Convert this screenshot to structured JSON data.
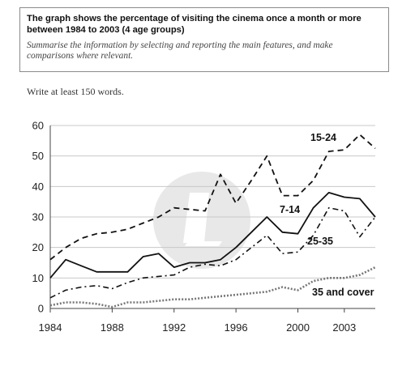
{
  "task": {
    "title": "The graph shows the percentage of visiting the cinema once a month or more between 1984 to 2003 (4 age groups)",
    "instructions": "Summarise the information by selecting and reporting the main features, and make comparisons where relevant."
  },
  "word_count_note": "Write at least 150 words.",
  "chart_data": {
    "type": "line",
    "title": "",
    "xlabel": "",
    "ylabel": "",
    "xlim": [
      1984,
      2005
    ],
    "ylim": [
      0,
      60
    ],
    "x_ticks": [
      1984,
      1988,
      1992,
      1996,
      2000,
      2003
    ],
    "x_tick_labels": [
      "1984",
      "1988",
      "1992",
      "1996",
      "2000",
      "2003"
    ],
    "y_ticks": [
      0,
      10,
      20,
      30,
      40,
      50,
      60
    ],
    "y_tick_labels": [
      "0",
      "10",
      "20",
      "30",
      "40",
      "50",
      "60"
    ],
    "grid": true,
    "legend": "inline labels",
    "series": [
      {
        "name": "15-24",
        "style": "dashed",
        "x": [
          1984,
          1985,
          1986,
          1987,
          1988,
          1989,
          1990,
          1991,
          1992,
          1993,
          1994,
          1995,
          1996,
          1997,
          1998,
          1999,
          2000,
          2001,
          2002,
          2003,
          2004,
          2005
        ],
        "y": [
          16,
          20,
          23,
          24.5,
          25,
          26,
          28,
          30,
          33,
          32.5,
          32,
          44,
          34.5,
          42,
          50,
          37,
          37,
          42,
          51.5,
          52,
          57,
          52.5
        ]
      },
      {
        "name": "7-14",
        "style": "solid",
        "x": [
          1984,
          1985,
          1986,
          1987,
          1988,
          1989,
          1990,
          1991,
          1992,
          1993,
          1994,
          1995,
          1996,
          1997,
          1998,
          1999,
          2000,
          2001,
          2002,
          2003,
          2004,
          2005
        ],
        "y": [
          10,
          16,
          14,
          12,
          12,
          12,
          17,
          18,
          13.5,
          15,
          15,
          16,
          20,
          25,
          30,
          25,
          24.5,
          33,
          38,
          36.5,
          36,
          30
        ]
      },
      {
        "name": "25-35",
        "style": "dash-dot",
        "x": [
          1984,
          1985,
          1986,
          1987,
          1988,
          1989,
          1990,
          1991,
          1992,
          1993,
          1994,
          1995,
          1996,
          1997,
          1998,
          1999,
          2000,
          2001,
          2002,
          2003,
          2004,
          2005
        ],
        "y": [
          3.5,
          6,
          7,
          7.5,
          6.5,
          8.5,
          10,
          10.5,
          11,
          13.5,
          14.5,
          14,
          16,
          20,
          24,
          18,
          18.5,
          24,
          33,
          32,
          23.5,
          30
        ]
      },
      {
        "name": "35 and cover",
        "style": "dotted",
        "x": [
          1984,
          1985,
          1986,
          1987,
          1988,
          1989,
          1990,
          1991,
          1992,
          1993,
          1994,
          1995,
          1996,
          1997,
          1998,
          1999,
          2000,
          2001,
          2002,
          2003,
          2004,
          2005
        ],
        "y": [
          1,
          2,
          2,
          1.5,
          0.5,
          2,
          2,
          2.5,
          3,
          3,
          3.5,
          4,
          4.5,
          5,
          5.5,
          7,
          6,
          9,
          10,
          10,
          11,
          13.5
        ]
      }
    ]
  }
}
